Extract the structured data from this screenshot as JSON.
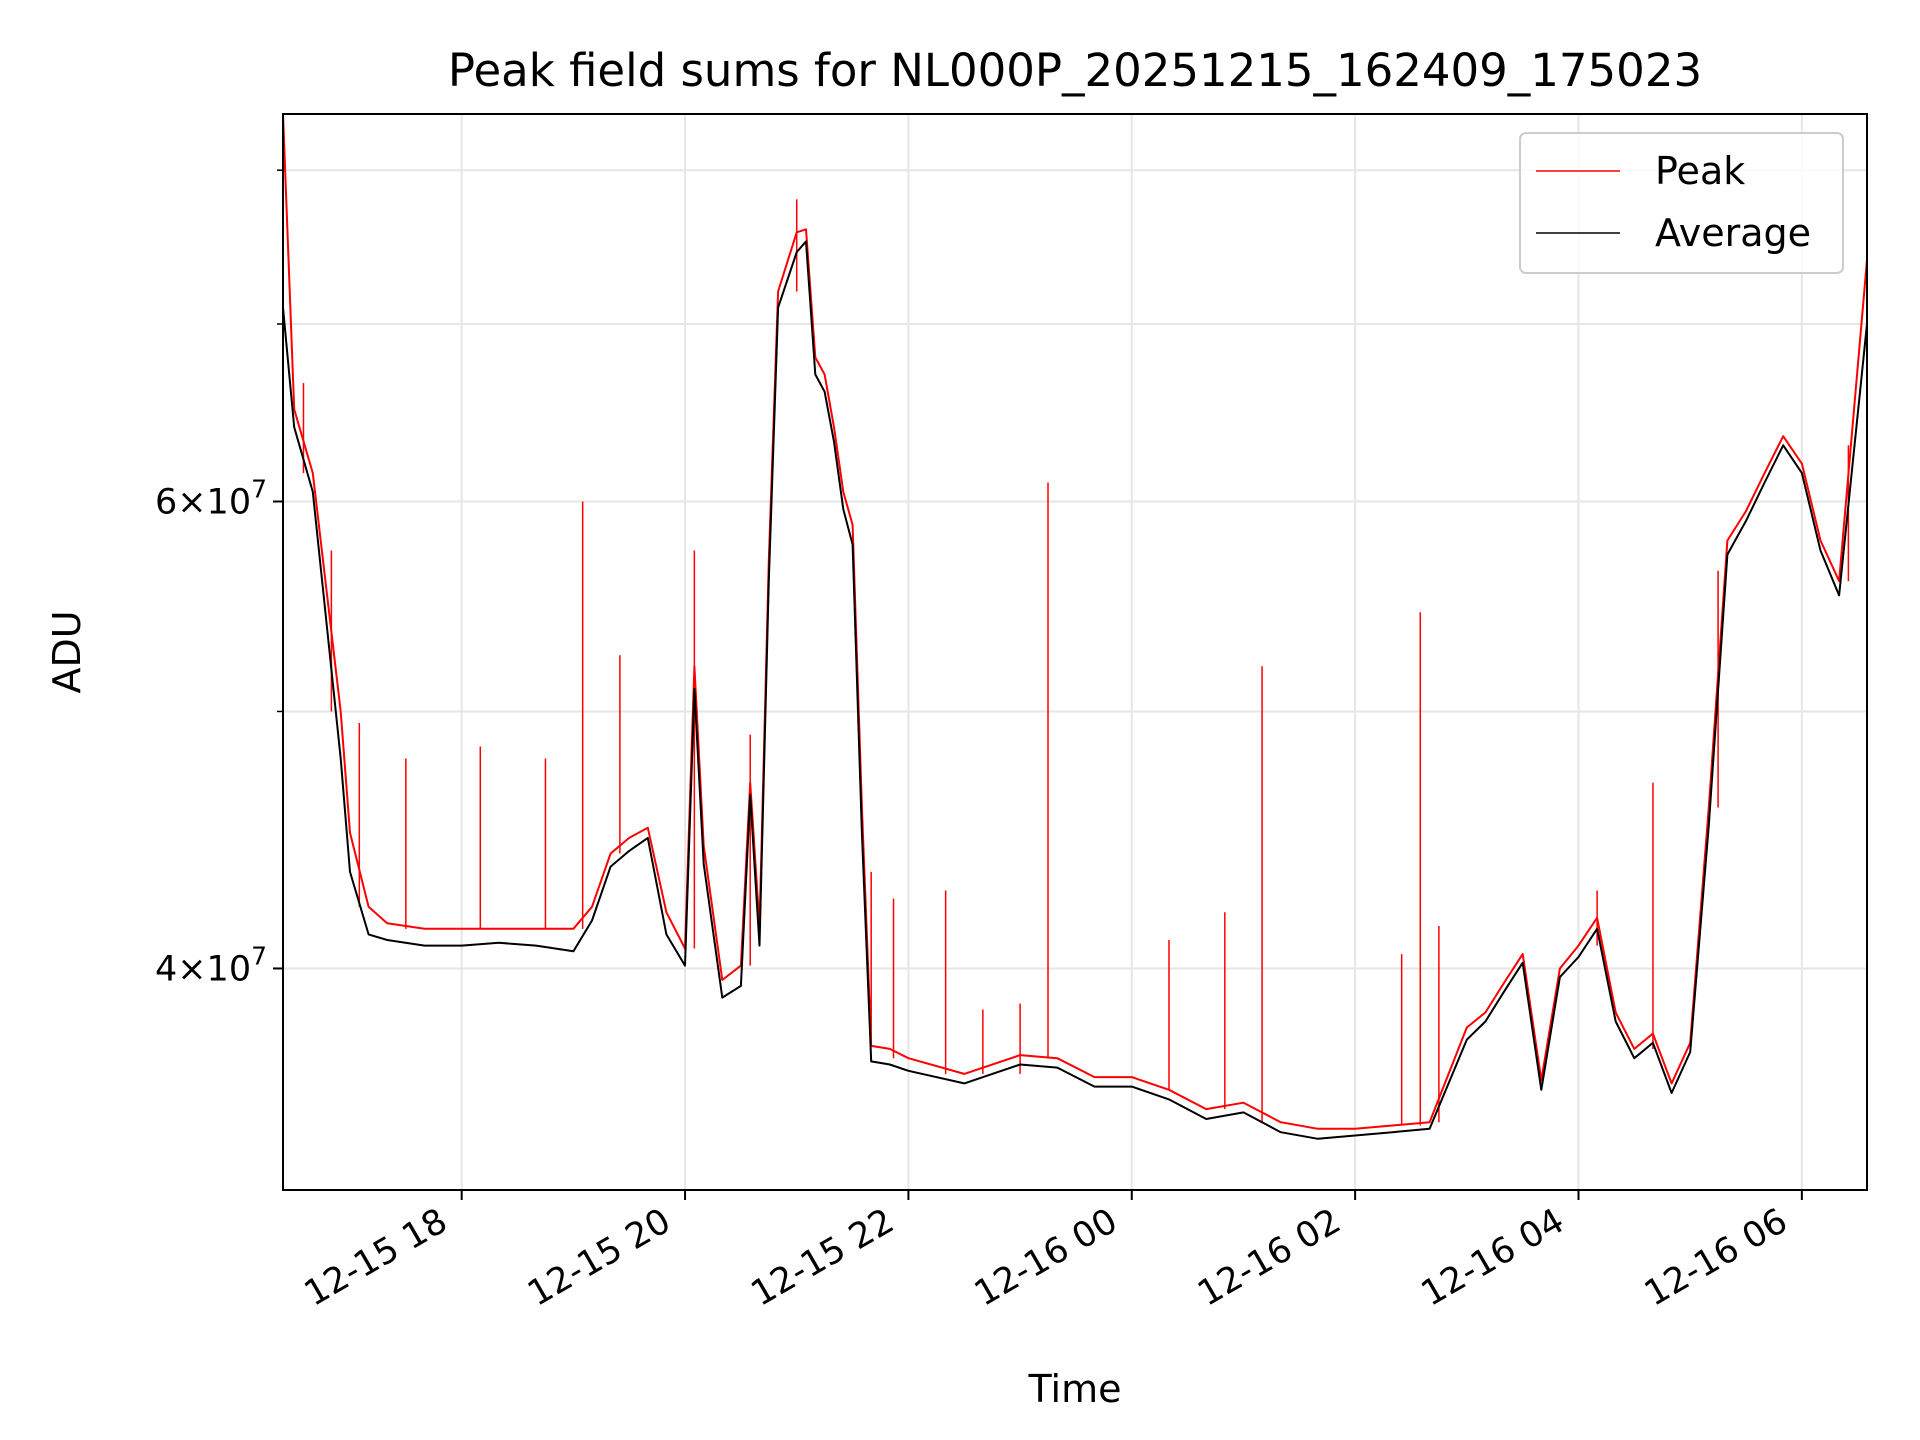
{
  "chart_data": {
    "type": "line",
    "title": "Peak field sums for NL000P_20251215_162409_175023",
    "xlabel": "Time",
    "ylabel": "ADU",
    "xlim": [
      "2025-12-15T16:24",
      "2025-12-16T06:35"
    ],
    "ylim": [
      33000000,
      84000000
    ],
    "y_scale": "log",
    "grid": true,
    "legend_position": "top-right",
    "x_ticks": [
      {
        "value": "2025-12-15T18:00",
        "label": "12-15 18"
      },
      {
        "value": "2025-12-15T20:00",
        "label": "12-15 20"
      },
      {
        "value": "2025-12-15T22:00",
        "label": "12-15 22"
      },
      {
        "value": "2025-12-16T00:00",
        "label": "12-16 00"
      },
      {
        "value": "2025-12-16T02:00",
        "label": "12-16 02"
      },
      {
        "value": "2025-12-16T04:00",
        "label": "12-16 04"
      },
      {
        "value": "2025-12-16T06:00",
        "label": "12-16 06"
      }
    ],
    "y_ticks": [
      {
        "value": 40000000,
        "mantissa": "4",
        "exponent": "7"
      },
      {
        "value": 60000000,
        "mantissa": "6",
        "exponent": "7"
      }
    ],
    "y_minor_ticks": [
      50000000,
      70000000,
      80000000
    ],
    "series": [
      {
        "name": "Peak",
        "color": "#ff0000",
        "x": [
          "2025-12-15T16:24",
          "2025-12-15T16:30",
          "2025-12-15T16:40",
          "2025-12-15T16:55",
          "2025-12-15T17:00",
          "2025-12-15T17:10",
          "2025-12-15T17:20",
          "2025-12-15T17:40",
          "2025-12-15T18:00",
          "2025-12-15T18:20",
          "2025-12-15T18:40",
          "2025-12-15T19:00",
          "2025-12-15T19:10",
          "2025-12-15T19:20",
          "2025-12-15T19:30",
          "2025-12-15T19:40",
          "2025-12-15T19:50",
          "2025-12-15T20:00",
          "2025-12-15T20:05",
          "2025-12-15T20:10",
          "2025-12-15T20:20",
          "2025-12-15T20:30",
          "2025-12-15T20:35",
          "2025-12-15T20:40",
          "2025-12-15T20:45",
          "2025-12-15T20:50",
          "2025-12-15T21:00",
          "2025-12-15T21:05",
          "2025-12-15T21:10",
          "2025-12-15T21:15",
          "2025-12-15T21:20",
          "2025-12-15T21:25",
          "2025-12-15T21:30",
          "2025-12-15T21:35",
          "2025-12-15T21:40",
          "2025-12-15T21:50",
          "2025-12-15T22:00",
          "2025-12-15T22:30",
          "2025-12-15T23:00",
          "2025-12-15T23:20",
          "2025-12-15T23:40",
          "2025-12-16T00:00",
          "2025-12-16T00:20",
          "2025-12-16T00:40",
          "2025-12-16T01:00",
          "2025-12-16T01:20",
          "2025-12-16T01:40",
          "2025-12-16T02:00",
          "2025-12-16T02:20",
          "2025-12-16T02:40",
          "2025-12-16T03:00",
          "2025-12-16T03:10",
          "2025-12-16T03:20",
          "2025-12-16T03:30",
          "2025-12-16T03:40",
          "2025-12-16T03:50",
          "2025-12-16T04:00",
          "2025-12-16T04:10",
          "2025-12-16T04:20",
          "2025-12-16T04:30",
          "2025-12-16T04:40",
          "2025-12-16T04:50",
          "2025-12-16T05:00",
          "2025-12-16T05:10",
          "2025-12-16T05:20",
          "2025-12-16T05:30",
          "2025-12-16T05:40",
          "2025-12-16T05:50",
          "2025-12-16T06:00",
          "2025-12-16T06:10",
          "2025-12-16T06:20",
          "2025-12-16T06:35"
        ],
        "y": [
          84000000,
          65000000,
          61500000,
          50000000,
          45000000,
          42200000,
          41600000,
          41400000,
          41400000,
          41400000,
          41400000,
          41400000,
          42200000,
          44200000,
          44800000,
          45200000,
          42000000,
          40700000,
          52000000,
          44500000,
          39600000,
          40100000,
          47000000,
          41500000,
          57000000,
          72000000,
          75800000,
          76000000,
          68000000,
          67000000,
          64000000,
          60500000,
          58800000,
          46000000,
          37400000,
          37300000,
          37000000,
          36500000,
          37100000,
          37000000,
          36400000,
          36400000,
          36000000,
          35400000,
          35600000,
          35000000,
          34800000,
          34800000,
          34900000,
          35000000,
          38000000,
          38500000,
          39500000,
          40500000,
          36300000,
          40000000,
          40800000,
          41800000,
          38500000,
          37300000,
          37800000,
          36200000,
          37500000,
          46000000,
          58000000,
          59500000,
          61500000,
          63500000,
          62000000,
          58000000,
          56000000,
          74000000
        ],
        "spikes": [
          {
            "x": "2025-12-15T16:35",
            "y": 66500000
          },
          {
            "x": "2025-12-15T16:50",
            "y": 57500000
          },
          {
            "x": "2025-12-15T17:05",
            "y": 49500000
          },
          {
            "x": "2025-12-15T17:30",
            "y": 48000000
          },
          {
            "x": "2025-12-15T18:10",
            "y": 48500000
          },
          {
            "x": "2025-12-15T18:45",
            "y": 48000000
          },
          {
            "x": "2025-12-15T19:05",
            "y": 60000000
          },
          {
            "x": "2025-12-15T19:25",
            "y": 52500000
          },
          {
            "x": "2025-12-15T20:05",
            "y": 57500000
          },
          {
            "x": "2025-12-15T20:35",
            "y": 49000000
          },
          {
            "x": "2025-12-15T21:00",
            "y": 78000000
          },
          {
            "x": "2025-12-15T21:40",
            "y": 43500000
          },
          {
            "x": "2025-12-15T21:52",
            "y": 42500000
          },
          {
            "x": "2025-12-15T22:20",
            "y": 42800000
          },
          {
            "x": "2025-12-15T22:40",
            "y": 38600000
          },
          {
            "x": "2025-12-15T23:00",
            "y": 38800000
          },
          {
            "x": "2025-12-15T23:15",
            "y": 61000000
          },
          {
            "x": "2025-12-16T00:20",
            "y": 41000000
          },
          {
            "x": "2025-12-16T00:50",
            "y": 42000000
          },
          {
            "x": "2025-12-16T01:10",
            "y": 52000000
          },
          {
            "x": "2025-12-16T02:25",
            "y": 40500000
          },
          {
            "x": "2025-12-16T02:35",
            "y": 54500000
          },
          {
            "x": "2025-12-16T02:45",
            "y": 41500000
          },
          {
            "x": "2025-12-16T04:10",
            "y": 42800000
          },
          {
            "x": "2025-12-16T04:40",
            "y": 47000000
          },
          {
            "x": "2025-12-16T05:15",
            "y": 56500000
          },
          {
            "x": "2025-12-16T06:25",
            "y": 63000000
          }
        ]
      },
      {
        "name": "Average",
        "color": "#000000",
        "x": [
          "2025-12-15T16:24",
          "2025-12-15T16:30",
          "2025-12-15T16:40",
          "2025-12-15T16:55",
          "2025-12-15T17:00",
          "2025-12-15T17:10",
          "2025-12-15T17:20",
          "2025-12-15T17:40",
          "2025-12-15T18:00",
          "2025-12-15T18:20",
          "2025-12-15T18:40",
          "2025-12-15T19:00",
          "2025-12-15T19:10",
          "2025-12-15T19:20",
          "2025-12-15T19:30",
          "2025-12-15T19:40",
          "2025-12-15T19:50",
          "2025-12-15T20:00",
          "2025-12-15T20:05",
          "2025-12-15T20:10",
          "2025-12-15T20:20",
          "2025-12-15T20:30",
          "2025-12-15T20:35",
          "2025-12-15T20:40",
          "2025-12-15T20:45",
          "2025-12-15T20:50",
          "2025-12-15T21:00",
          "2025-12-15T21:05",
          "2025-12-15T21:10",
          "2025-12-15T21:15",
          "2025-12-15T21:20",
          "2025-12-15T21:25",
          "2025-12-15T21:30",
          "2025-12-15T21:35",
          "2025-12-15T21:40",
          "2025-12-15T21:50",
          "2025-12-15T22:00",
          "2025-12-15T22:30",
          "2025-12-15T23:00",
          "2025-12-15T23:20",
          "2025-12-15T23:40",
          "2025-12-16T00:00",
          "2025-12-16T00:20",
          "2025-12-16T00:40",
          "2025-12-16T01:00",
          "2025-12-16T01:20",
          "2025-12-16T01:40",
          "2025-12-16T02:00",
          "2025-12-16T02:20",
          "2025-12-16T02:40",
          "2025-12-16T03:00",
          "2025-12-16T03:10",
          "2025-12-16T03:20",
          "2025-12-16T03:30",
          "2025-12-16T03:40",
          "2025-12-16T03:50",
          "2025-12-16T04:00",
          "2025-12-16T04:10",
          "2025-12-16T04:20",
          "2025-12-16T04:30",
          "2025-12-16T04:40",
          "2025-12-16T04:50",
          "2025-12-16T05:00",
          "2025-12-16T05:10",
          "2025-12-16T05:20",
          "2025-12-16T05:30",
          "2025-12-16T05:40",
          "2025-12-16T05:50",
          "2025-12-16T06:00",
          "2025-12-16T06:10",
          "2025-12-16T06:20",
          "2025-12-16T06:35"
        ],
        "y": [
          71000000,
          64000000,
          60500000,
          48000000,
          43500000,
          41200000,
          41000000,
          40800000,
          40800000,
          40900000,
          40800000,
          40600000,
          41700000,
          43700000,
          44300000,
          44800000,
          41200000,
          40100000,
          51000000,
          43800000,
          39000000,
          39400000,
          46500000,
          40800000,
          56000000,
          71000000,
          74500000,
          75200000,
          67000000,
          66000000,
          63200000,
          59600000,
          57800000,
          45000000,
          36900000,
          36800000,
          36600000,
          36200000,
          36800000,
          36700000,
          36100000,
          36100000,
          35700000,
          35100000,
          35300000,
          34700000,
          34500000,
          34600000,
          34700000,
          34800000,
          37600000,
          38200000,
          39200000,
          40200000,
          36000000,
          39700000,
          40400000,
          41400000,
          38200000,
          37000000,
          37500000,
          35900000,
          37200000,
          45300000,
          57300000,
          59000000,
          61000000,
          63000000,
          61500000,
          57500000,
          55300000,
          70000000
        ]
      }
    ]
  }
}
